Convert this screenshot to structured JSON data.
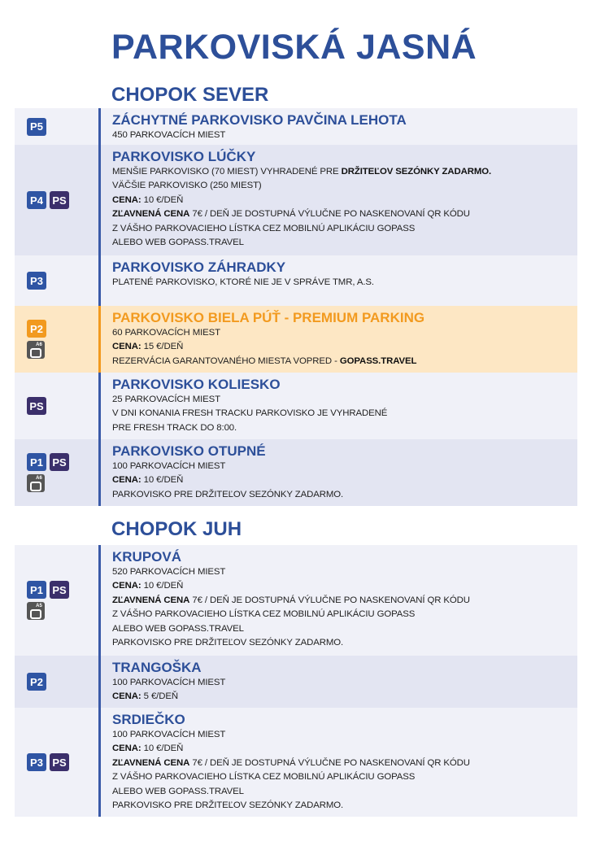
{
  "title": "PARKOVISKÁ JASNÁ",
  "colors": {
    "primary": "#2d4f99",
    "premium": "#f29a1f",
    "ps_badge": "#3b2f6b",
    "row_light": "#f0f1f8",
    "row_dark": "#e3e5f2",
    "row_premium": "#fde7c4"
  },
  "sections": [
    {
      "title": "CHOPOK SEVER",
      "rows": [
        {
          "icons": [
            [
              "P5"
            ]
          ],
          "name": "ZÁCHYTNÉ PARKOVISKO PAVČINA LEHOTA",
          "lines": [
            [
              {
                "t": "450 PARKOVACÍCH MIEST",
                "b": false
              }
            ]
          ]
        },
        {
          "icons": [
            [
              "P4",
              "PS"
            ]
          ],
          "name": "PARKOVISKO LÚČKY",
          "lines": [
            [
              {
                "t": "MENŠIE PARKOVISKO  (70 MIEST)",
                "b": false
              },
              {
                "t": " VYHRADENÉ PRE ",
                "b": false
              },
              {
                "t": "DRŽITEĽOV SEZÓNKY ZADARMO.",
                "b": true
              }
            ],
            [
              {
                "t": "VÄČŠIE PARKOVISKO (250 MIEST)",
                "b": false
              }
            ],
            [
              {
                "t": "CENA:",
                "b": true
              },
              {
                "t": " 10 €/DEŇ",
                "b": false
              }
            ],
            [
              {
                "t": "ZĽAVNENÁ CENA",
                "b": true
              },
              {
                "t": " 7€ / DEŇ JE DOSTUPNÁ VÝLUČNE PO NASKENOVANÍ QR KÓDU",
                "b": false
              }
            ],
            [
              {
                "t": "Z VÁŠHO PARKOVACIEHO LÍSTKA CEZ MOBILNÚ APLIKÁCIU GOPASS",
                "b": false
              }
            ],
            [
              {
                "t": "ALEBO WEB GOPASS.TRAVEL",
                "b": false
              }
            ]
          ]
        },
        {
          "icons": [
            [
              "P3"
            ]
          ],
          "name": "PARKOVISKO ZÁHRADKY",
          "lines": [
            [
              {
                "t": "PLATENÉ PARKOVISKO, KTORÉ NIE JE V SPRÁVE TMR, A.S.",
                "b": false
              }
            ]
          ]
        },
        {
          "premium": true,
          "icons": [
            [
              "P2"
            ],
            [
              "A6"
            ]
          ],
          "name": "PARKOVISKO BIELA PÚŤ - PREMIUM PARKING",
          "lines": [
            [
              {
                "t": "60 PARKOVACÍCH MIEST",
                "b": false
              }
            ],
            [
              {
                "t": "CENA:",
                "b": true
              },
              {
                "t": " 15 €/DEŇ",
                "b": false
              }
            ],
            [
              {
                "t": "REZERVÁCIA GARANTOVANÉHO MIESTA VOPRED - ",
                "b": false
              },
              {
                "t": "GOPASS.TRAVEL",
                "b": true
              }
            ]
          ]
        },
        {
          "icons": [
            [
              "PS"
            ]
          ],
          "name": "PARKOVISKO KOLIESKO",
          "lines": [
            [
              {
                "t": "25 PARKOVACÍCH MIEST",
                "b": false
              }
            ],
            [
              {
                "t": "V DNI KONANIA FRESH TRACKU PARKOVISKO JE VYHRADENÉ",
                "b": false
              }
            ],
            [
              {
                "t": "PRE FRESH TRACK DO 8:00.",
                "b": false
              }
            ]
          ]
        },
        {
          "icons": [
            [
              "P1",
              "PS"
            ],
            [
              "A6"
            ]
          ],
          "name": "PARKOVISKO OTUPNÉ",
          "lines": [
            [
              {
                "t": "100 PARKOVACÍCH MIEST",
                "b": false
              }
            ],
            [
              {
                "t": "CENA:",
                "b": true
              },
              {
                "t": "  10 €/DEŇ",
                "b": false
              }
            ],
            [
              {
                "t": "PARKOVISKO PRE DRŽITEĽOV SEZÓNKY ZADARMO.",
                "b": false
              }
            ]
          ]
        }
      ]
    },
    {
      "title": "CHOPOK JUH",
      "rows": [
        {
          "icons": [
            [
              "P1",
              "PS"
            ],
            [
              "A5"
            ]
          ],
          "name": "KRUPOVÁ",
          "lines": [
            [
              {
                "t": "520 PARKOVACÍCH MIEST",
                "b": false
              }
            ],
            [
              {
                "t": "CENA:",
                "b": true
              },
              {
                "t": " 10 €/DEŇ",
                "b": false
              }
            ],
            [
              {
                "t": "ZĽAVNENÁ CENA",
                "b": true
              },
              {
                "t": " 7€ / DEŇ JE DOSTUPNÁ VÝLUČNE PO NASKENOVANÍ QR KÓDU",
                "b": false
              }
            ],
            [
              {
                "t": "Z VÁŠHO PARKOVACIEHO LÍSTKA CEZ MOBILNÚ APLIKÁCIU GOPASS",
                "b": false
              }
            ],
            [
              {
                "t": "ALEBO WEB GOPASS.TRAVEL",
                "b": false
              }
            ],
            [
              {
                "t": "PARKOVISKO PRE DRŽITEĽOV SEZÓNKY ZADARMO.",
                "b": false
              }
            ]
          ]
        },
        {
          "icons": [
            [
              "P2"
            ]
          ],
          "name": "TRANGOŠKA",
          "lines": [
            [
              {
                "t": "100 PARKOVACÍCH MIEST",
                "b": false
              }
            ],
            [
              {
                "t": "CENA:",
                "b": true
              },
              {
                "t": " 5 €/DEŇ",
                "b": false
              }
            ]
          ]
        },
        {
          "icons": [
            [
              "P3",
              "PS"
            ]
          ],
          "name": "SRDIEČKO",
          "lines": [
            [
              {
                "t": "100 PARKOVACÍCH MIEST",
                "b": false
              }
            ],
            [
              {
                "t": "CENA:",
                "b": true
              },
              {
                "t": " 10 €/DEŇ",
                "b": false
              }
            ],
            [
              {
                "t": "ZĽAVNENÁ CENA",
                "b": true
              },
              {
                "t": " 7€ / DEŇ JE DOSTUPNÁ VÝLUČNE PO NASKENOVANÍ QR KÓDU",
                "b": false
              }
            ],
            [
              {
                "t": "Z VÁŠHO PARKOVACIEHO LÍSTKA CEZ MOBILNÚ APLIKÁCIU GOPASS",
                "b": false
              }
            ],
            [
              {
                "t": "ALEBO WEB GOPASS.TRAVEL",
                "b": false
              }
            ],
            [
              {
                "t": "PARKOVISKO PRE DRŽITEĽOV SEZÓNKY ZADARMO.",
                "b": false
              }
            ]
          ]
        }
      ]
    }
  ]
}
